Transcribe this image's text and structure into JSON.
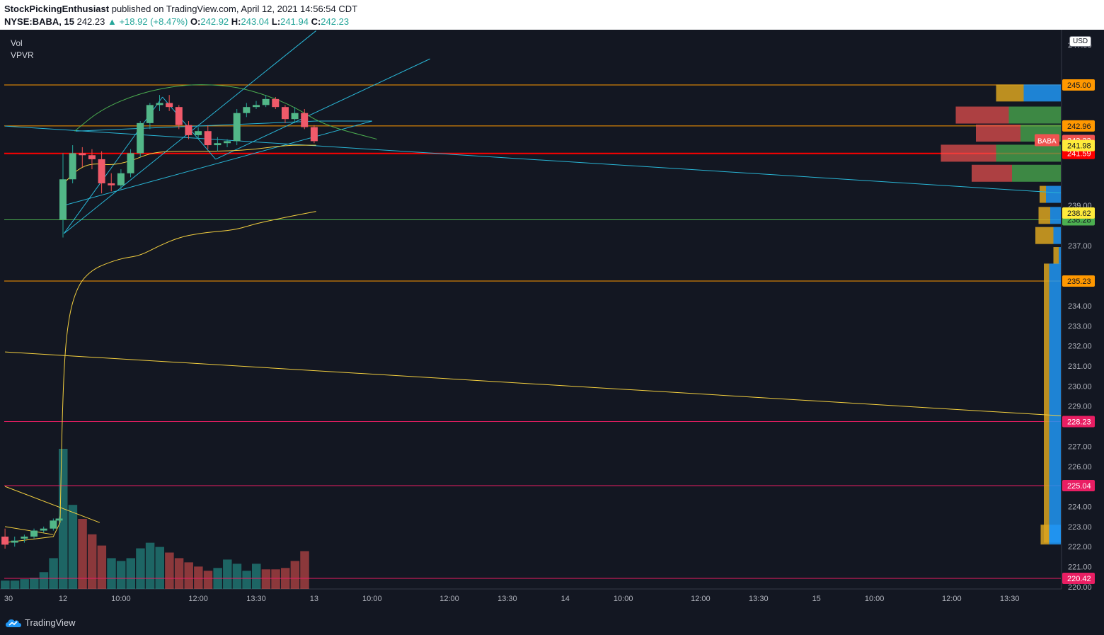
{
  "header": {
    "author": "StockPickingEnthusiast",
    "published_text": "published on TradingView.com, April 12, 2021 14:56:54 CDT",
    "symbol": "NYSE:BABA, 15",
    "last": "242.23",
    "change": "▲ +18.92 (+8.47%)",
    "o_label": "O:",
    "o_value": "242.92",
    "h_label": "H:",
    "h_value": "243.04",
    "l_label": "L:",
    "l_value": "241.94",
    "c_label": "C:",
    "c_value": "242.23"
  },
  "indicators": [
    "Vol",
    "VPVR"
  ],
  "currency": "USD",
  "footer": {
    "brand": "TradingView"
  },
  "colors": {
    "background": "#131722",
    "up": "#26a69a",
    "down": "#ef5350",
    "orange": "#ff9800",
    "red": "#ff0000",
    "green": "#4caf50",
    "pink": "#e91e63",
    "yellow": "#f4d03f",
    "cyan": "#29b6d6"
  },
  "chart_data": {
    "type": "candlestick",
    "price_axis": {
      "ticks": [
        "247.00",
        "239.00",
        "237.00",
        "234.00",
        "233.00",
        "232.00",
        "231.00",
        "230.00",
        "229.00",
        "227.00",
        "226.00",
        "224.00",
        "223.00",
        "222.00",
        "221.00",
        "220.00"
      ],
      "ylim": [
        220.0,
        247.5
      ]
    },
    "time_axis": {
      "ticks": [
        {
          "label": "30",
          "bar": -6
        },
        {
          "label": "12",
          "bar": 0
        },
        {
          "label": "10:00",
          "bar": 6
        },
        {
          "label": "12:00",
          "bar": 14
        },
        {
          "label": "13:30",
          "bar": 20
        },
        {
          "label": "13",
          "bar": 26
        },
        {
          "label": "10:00",
          "bar": 32
        },
        {
          "label": "12:00",
          "bar": 40
        },
        {
          "label": "13:30",
          "bar": 46
        },
        {
          "label": "14",
          "bar": 52
        },
        {
          "label": "10:00",
          "bar": 58
        },
        {
          "label": "12:00",
          "bar": 66
        },
        {
          "label": "13:30",
          "bar": 72
        },
        {
          "label": "15",
          "bar": 78
        },
        {
          "label": "10:00",
          "bar": 84
        },
        {
          "label": "12:00",
          "bar": 92
        },
        {
          "label": "13:30",
          "bar": 98
        }
      ]
    },
    "candles": [
      {
        "bar": -6,
        "o": 222.5,
        "h": 222.9,
        "l": 221.9,
        "c": 222.1
      },
      {
        "bar": -5,
        "o": 222.2,
        "h": 222.5,
        "l": 222.0,
        "c": 222.3
      },
      {
        "bar": -4,
        "o": 222.4,
        "h": 222.6,
        "l": 222.2,
        "c": 222.5
      },
      {
        "bar": -3,
        "o": 222.5,
        "h": 222.9,
        "l": 222.4,
        "c": 222.8
      },
      {
        "bar": -2,
        "o": 222.8,
        "h": 223.0,
        "l": 222.7,
        "c": 222.9
      },
      {
        "bar": -1,
        "o": 222.9,
        "h": 223.4,
        "l": 222.8,
        "c": 223.3
      },
      {
        "bar": -0.4,
        "o": 223.3,
        "h": 223.5,
        "l": 223.2,
        "c": 223.4
      },
      {
        "bar": 0,
        "o": 238.3,
        "h": 241.6,
        "l": 237.4,
        "c": 240.3
      },
      {
        "bar": 1,
        "o": 240.3,
        "h": 242.0,
        "l": 240.1,
        "c": 241.6
      },
      {
        "bar": 2,
        "o": 241.6,
        "h": 241.9,
        "l": 240.9,
        "c": 241.5
      },
      {
        "bar": 3,
        "o": 241.5,
        "h": 241.8,
        "l": 240.8,
        "c": 241.3
      },
      {
        "bar": 4,
        "o": 241.3,
        "h": 241.7,
        "l": 239.6,
        "c": 240.1
      },
      {
        "bar": 5,
        "o": 240.1,
        "h": 240.6,
        "l": 239.7,
        "c": 240.0
      },
      {
        "bar": 6,
        "o": 240.0,
        "h": 240.8,
        "l": 239.8,
        "c": 240.6
      },
      {
        "bar": 7,
        "o": 240.6,
        "h": 241.8,
        "l": 240.4,
        "c": 241.6
      },
      {
        "bar": 8,
        "o": 241.6,
        "h": 243.2,
        "l": 241.4,
        "c": 243.1
      },
      {
        "bar": 9,
        "o": 243.1,
        "h": 244.1,
        "l": 242.8,
        "c": 244.0
      },
      {
        "bar": 10,
        "o": 244.0,
        "h": 244.5,
        "l": 243.7,
        "c": 244.1
      },
      {
        "bar": 11,
        "o": 244.1,
        "h": 244.5,
        "l": 243.7,
        "c": 243.9
      },
      {
        "bar": 12,
        "o": 243.9,
        "h": 244.0,
        "l": 242.8,
        "c": 243.0
      },
      {
        "bar": 13,
        "o": 243.0,
        "h": 243.2,
        "l": 242.3,
        "c": 242.5
      },
      {
        "bar": 14,
        "o": 242.5,
        "h": 242.9,
        "l": 242.3,
        "c": 242.7
      },
      {
        "bar": 15,
        "o": 242.7,
        "h": 243.0,
        "l": 241.8,
        "c": 242.0
      },
      {
        "bar": 16,
        "o": 242.0,
        "h": 242.4,
        "l": 241.7,
        "c": 242.1
      },
      {
        "bar": 17,
        "o": 242.1,
        "h": 242.3,
        "l": 241.9,
        "c": 242.2
      },
      {
        "bar": 18,
        "o": 242.2,
        "h": 243.8,
        "l": 242.0,
        "c": 243.6
      },
      {
        "bar": 19,
        "o": 243.6,
        "h": 244.1,
        "l": 243.4,
        "c": 243.9
      },
      {
        "bar": 20,
        "o": 243.9,
        "h": 244.2,
        "l": 243.8,
        "c": 244.0
      },
      {
        "bar": 21,
        "o": 244.0,
        "h": 244.5,
        "l": 243.9,
        "c": 244.3
      },
      {
        "bar": 22,
        "o": 244.3,
        "h": 244.4,
        "l": 243.8,
        "c": 243.9
      },
      {
        "bar": 23,
        "o": 243.9,
        "h": 244.0,
        "l": 243.1,
        "c": 243.3
      },
      {
        "bar": 24,
        "o": 243.3,
        "h": 243.9,
        "l": 243.1,
        "c": 243.6
      },
      {
        "bar": 25,
        "o": 243.6,
        "h": 243.8,
        "l": 242.8,
        "c": 242.9
      },
      {
        "bar": 26,
        "o": 242.9,
        "h": 243.0,
        "l": 242.1,
        "c": 242.2
      }
    ],
    "volume": [
      {
        "bar": -6,
        "v": 0.06,
        "up": true
      },
      {
        "bar": -5,
        "v": 0.06,
        "up": true
      },
      {
        "bar": -4,
        "v": 0.07,
        "up": true
      },
      {
        "bar": -3,
        "v": 0.08,
        "up": true
      },
      {
        "bar": -2,
        "v": 0.12,
        "up": true
      },
      {
        "bar": -1,
        "v": 0.22,
        "up": true
      },
      {
        "bar": 0,
        "v": 1.0,
        "up": true
      },
      {
        "bar": 1,
        "v": 0.6,
        "up": true
      },
      {
        "bar": 2,
        "v": 0.5,
        "up": false
      },
      {
        "bar": 3,
        "v": 0.39,
        "up": false
      },
      {
        "bar": 4,
        "v": 0.31,
        "up": false
      },
      {
        "bar": 5,
        "v": 0.22,
        "up": true
      },
      {
        "bar": 6,
        "v": 0.2,
        "up": true
      },
      {
        "bar": 7,
        "v": 0.22,
        "up": true
      },
      {
        "bar": 8,
        "v": 0.29,
        "up": true
      },
      {
        "bar": 9,
        "v": 0.33,
        "up": true
      },
      {
        "bar": 10,
        "v": 0.3,
        "up": true
      },
      {
        "bar": 11,
        "v": 0.26,
        "up": false
      },
      {
        "bar": 12,
        "v": 0.22,
        "up": false
      },
      {
        "bar": 13,
        "v": 0.19,
        "up": false
      },
      {
        "bar": 14,
        "v": 0.16,
        "up": false
      },
      {
        "bar": 15,
        "v": 0.13,
        "up": false
      },
      {
        "bar": 16,
        "v": 0.15,
        "up": true
      },
      {
        "bar": 17,
        "v": 0.21,
        "up": true
      },
      {
        "bar": 18,
        "v": 0.18,
        "up": true
      },
      {
        "bar": 19,
        "v": 0.13,
        "up": true
      },
      {
        "bar": 20,
        "v": 0.18,
        "up": true
      },
      {
        "bar": 21,
        "v": 0.14,
        "up": false
      },
      {
        "bar": 22,
        "v": 0.14,
        "up": false
      },
      {
        "bar": 23,
        "v": 0.15,
        "up": false
      },
      {
        "bar": 24,
        "v": 0.2,
        "up": false
      },
      {
        "bar": 25,
        "v": 0.27,
        "up": false
      }
    ],
    "horizontal_levels": [
      {
        "price": 245.0,
        "label": "245.00",
        "color": "#ff9800",
        "text": "#131722",
        "width": 1
      },
      {
        "price": 242.96,
        "label": "242.96",
        "color": "#ff9800",
        "text": "#131722",
        "width": 1
      },
      {
        "price": 241.59,
        "label": "241.59",
        "color": "#ff0000",
        "text": "#ffffff",
        "width": 2
      },
      {
        "price": 238.28,
        "label": "238.28",
        "color": "#4caf50",
        "text": "#131722",
        "width": 1
      },
      {
        "price": 235.23,
        "label": "235.23",
        "color": "#ff9800",
        "text": "#131722",
        "width": 1
      },
      {
        "price": 228.23,
        "label": "228.23",
        "color": "#e91e63",
        "text": "#ffffff",
        "width": 1
      },
      {
        "price": 225.04,
        "label": "225.04",
        "color": "#e91e63",
        "text": "#ffffff",
        "width": 1
      },
      {
        "price": 220.42,
        "label": "220.42",
        "color": "#e91e63",
        "text": "#ffffff",
        "width": 1
      }
    ],
    "price_tags": [
      {
        "price": 242.23,
        "label": "242.23",
        "color": "#ef5350",
        "text": "#ffffff",
        "symbol": "BABA"
      },
      {
        "price": 241.98,
        "label": "241.98",
        "color": "#ffeb3b",
        "text": "#131722"
      },
      {
        "price": 238.62,
        "label": "238.62",
        "color": "#ffeb3b",
        "text": "#131722"
      }
    ],
    "trend_lines": [
      {
        "color": "#29b6d6",
        "points": [
          [
            -6,
            242.95
          ],
          [
            104,
            239.6
          ]
        ]
      },
      {
        "color": "#29b6d6",
        "points": [
          [
            0.1,
            237.6
          ],
          [
            26.2,
            247.7
          ]
        ]
      },
      {
        "color": "#29b6d6",
        "points": [
          [
            0.1,
            239.0
          ],
          [
            32,
            243.2
          ]
        ]
      },
      {
        "color": "#29b6d6",
        "points": [
          [
            0.1,
            237.6
          ],
          [
            10.3,
            244.4
          ]
        ]
      },
      {
        "color": "#29b6d6",
        "points": [
          [
            10.3,
            244.4
          ],
          [
            15.8,
            241.3
          ]
        ]
      },
      {
        "color": "#29b6d6",
        "points": [
          [
            15.8,
            241.3
          ],
          [
            38,
            246.3
          ]
        ]
      },
      {
        "color": "#29b6d6",
        "points": [
          [
            1.3,
            242.7
          ],
          [
            26.2,
            243.2
          ],
          [
            32,
            243.2
          ]
        ]
      },
      {
        "color": "#f4d03f",
        "points": [
          [
            -6,
            231.7
          ],
          [
            104,
            228.5
          ]
        ]
      },
      {
        "color": "#f4d03f",
        "points": [
          [
            -6,
            225.0
          ],
          [
            3.8,
            223.2
          ]
        ]
      },
      {
        "color": "#f4d03f",
        "points": [
          [
            -6,
            223.0
          ],
          [
            -1,
            222.6
          ]
        ]
      },
      {
        "color": "#f4d03f",
        "points": [
          [
            -6,
            222.2
          ],
          [
            -1,
            222.5
          ],
          [
            -0.3,
            223.2
          ]
        ]
      }
    ],
    "ma_lines": [
      {
        "color": "#4caf50",
        "points": [
          [
            1.2,
            242.7
          ],
          [
            4,
            243.8
          ],
          [
            8,
            244.6
          ],
          [
            12,
            244.98
          ],
          [
            15,
            245.03
          ],
          [
            18,
            244.9
          ],
          [
            21,
            244.5
          ],
          [
            24,
            243.9
          ],
          [
            27,
            243.0
          ],
          [
            32.5,
            242.3
          ]
        ]
      },
      {
        "color": "#f4d03f",
        "points": [
          [
            0.1,
            240.1
          ],
          [
            1.5,
            240.8
          ],
          [
            3,
            241.1
          ],
          [
            5,
            241.0
          ],
          [
            7,
            241.2
          ],
          [
            9,
            241.6
          ],
          [
            11,
            241.7
          ],
          [
            14,
            241.7
          ],
          [
            17,
            241.7
          ],
          [
            20,
            241.8
          ],
          [
            23,
            242.0
          ],
          [
            26.2,
            242.0
          ]
        ]
      },
      {
        "color": "#f4d03f",
        "points": [
          [
            -0.3,
            223.2
          ],
          [
            0,
            230.2
          ],
          [
            0.5,
            233.3
          ],
          [
            1.5,
            235.0
          ],
          [
            3,
            235.8
          ],
          [
            5,
            236.2
          ],
          [
            6.5,
            236.4
          ],
          [
            8,
            236.5
          ],
          [
            10,
            237.0
          ],
          [
            12,
            237.4
          ],
          [
            14,
            237.6
          ],
          [
            16,
            237.7
          ],
          [
            18,
            237.8
          ],
          [
            20,
            238.1
          ],
          [
            22,
            238.3
          ],
          [
            24,
            238.5
          ],
          [
            26.2,
            238.7
          ]
        ]
      }
    ],
    "vpvr": {
      "rows": [
        {
          "price": 244.6,
          "up": 0.35,
          "down": 0.26,
          "style": "bicolor"
        },
        {
          "price": 243.5,
          "up": 0.49,
          "down": 0.5,
          "style": "redgreen"
        },
        {
          "price": 242.6,
          "up": 0.38,
          "down": 0.42,
          "style": "redgreen"
        },
        {
          "price": 241.6,
          "up": 0.61,
          "down": 0.52,
          "style": "redgreen"
        },
        {
          "price": 240.6,
          "up": 0.46,
          "down": 0.38,
          "style": "redgreen"
        },
        {
          "price": 239.55,
          "up": 0.14,
          "down": 0.06,
          "style": "bicolor"
        },
        {
          "price": 238.5,
          "up": 0.1,
          "down": 0.11,
          "style": "bicolor"
        },
        {
          "price": 237.5,
          "up": 0.07,
          "down": 0.17,
          "style": "bicolor"
        },
        {
          "price": 236.5,
          "up": 0.02,
          "down": 0.05,
          "style": "bicolor"
        }
      ],
      "column": {
        "top": 236.1,
        "bottom": 222.2,
        "up": 0.11,
        "down": 0.05
      },
      "bottom_row": {
        "price": 222.6,
        "up": 0.11,
        "down": 0.08
      }
    }
  }
}
